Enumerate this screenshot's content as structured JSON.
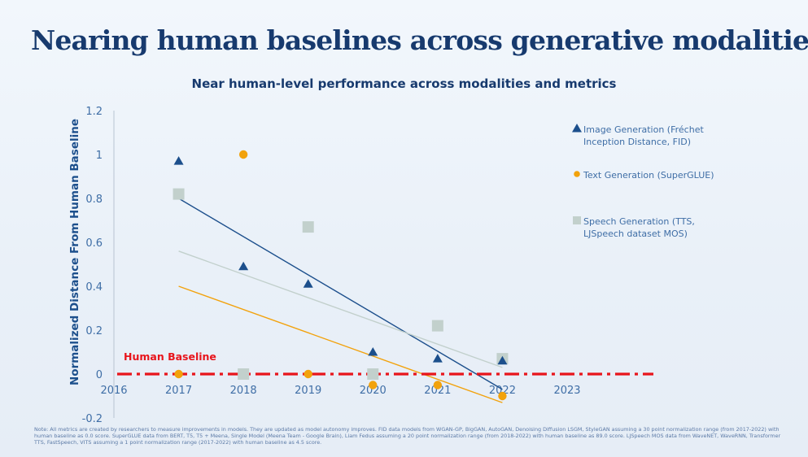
{
  "header": {
    "title": "Nearing human baselines across generative modalities"
  },
  "chart_data": {
    "type": "scatter",
    "title": "Near human-level performance across modalities and metrics",
    "ylabel": "Normalized Distance From Human Baseline",
    "xlim": [
      2016,
      2023
    ],
    "ylim": [
      -0.2,
      1.2
    ],
    "x_ticks": [
      "2016",
      "2017",
      "2018",
      "2019",
      "2020",
      "2021",
      "2022",
      "2023"
    ],
    "y_ticks": [
      "-0.2",
      "0",
      "0.2",
      "0.4",
      "0.6",
      "0.8",
      "1",
      "1.2"
    ],
    "baseline": {
      "label": "Human Baseline",
      "value": 0,
      "color": "#e8141b"
    },
    "legend_position": "right",
    "series": [
      {
        "name": "Image Generation (Fréchet Inception Distance, FID)",
        "marker": "triangle",
        "color": "#1c4f8c",
        "points": [
          [
            2017,
            0.97
          ],
          [
            2018,
            0.49
          ],
          [
            2019,
            0.41
          ],
          [
            2020,
            0.1
          ],
          [
            2021,
            0.07
          ],
          [
            2022,
            0.06
          ]
        ],
        "trend": [
          [
            2017,
            0.8
          ],
          [
            2022,
            -0.07
          ]
        ]
      },
      {
        "name": "Text Generation (SuperGLUE)",
        "marker": "circle",
        "color": "#f2a20c",
        "points": [
          [
            2017,
            0.0
          ],
          [
            2018,
            1.0
          ],
          [
            2019,
            0.0
          ],
          [
            2020,
            -0.05
          ],
          [
            2021,
            -0.05
          ],
          [
            2022,
            -0.1
          ]
        ],
        "trend": [
          [
            2017,
            0.4
          ],
          [
            2022,
            -0.13
          ]
        ]
      },
      {
        "name": "Speech Generation (TTS, LJSpeech dataset MOS)",
        "marker": "square",
        "color": "#c2d0cc",
        "points": [
          [
            2017,
            0.82
          ],
          [
            2018,
            0.0
          ],
          [
            2019,
            0.67
          ],
          [
            2020,
            0.0
          ],
          [
            2021,
            0.22
          ],
          [
            2022,
            0.07
          ]
        ],
        "trend": [
          [
            2017,
            0.56
          ],
          [
            2022,
            0.03
          ]
        ]
      }
    ]
  },
  "footer": {
    "note": "Note: All metrics are created by researchers to measure improvements in models. They are updated as model autonomy improves. FID data models from WGAN-GP, BigGAN, AutoGAN, Denoising Diffusion LSGM, StyleGAN assuming a 30 point normalization range (from 2017-2022) with human baseline as 0.0 score. SuperGLUE data from BERT, T5, T5 + Meena, Single Model (Meena Team - Google Brain), Liam Fedus assuming a 20 point normalization range (from 2018-2022) with human baseline as 89.0 score. LJSpeech MOS data from WaveNET, WaveRNN, Transformer TTS, FastSpeech, VITS assuming a 1 point normalization range (2017-2022) with human baseline as 4.5 score."
  }
}
